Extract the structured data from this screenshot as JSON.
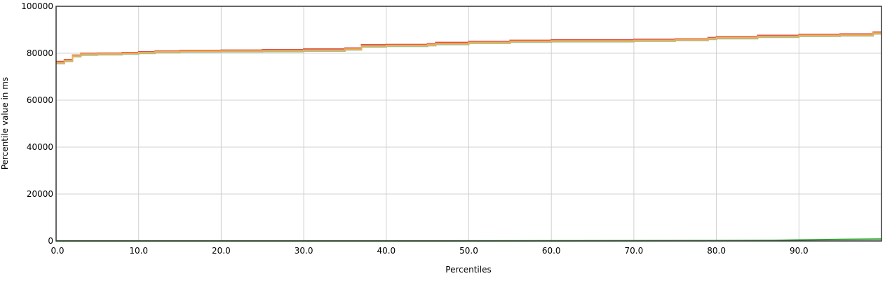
{
  "chart_data": {
    "type": "line",
    "title": "",
    "xlabel": "Percentiles",
    "ylabel": "Percentile value in ms",
    "xlim": [
      0,
      100
    ],
    "ylim": [
      0,
      100000
    ],
    "grid": true,
    "legend": "none",
    "x_ticks": [
      "0.0",
      "10.0",
      "20.0",
      "30.0",
      "40.0",
      "50.0",
      "60.0",
      "70.0",
      "80.0",
      "90.0"
    ],
    "y_ticks": [
      "0",
      "20000",
      "40000",
      "60000",
      "80000",
      "100000"
    ],
    "series": [
      {
        "color": "#d9534f",
        "step": true,
        "x": [
          0,
          1,
          2,
          3,
          5,
          8,
          10,
          12,
          15,
          20,
          25,
          30,
          35,
          37,
          40,
          45,
          46,
          50,
          55,
          60,
          65,
          70,
          75,
          79,
          80,
          85,
          90,
          95,
          99,
          100
        ],
        "y": [
          76500,
          77300,
          79200,
          79900,
          80000,
          80300,
          80600,
          80900,
          81200,
          81300,
          81500,
          81800,
          82200,
          83600,
          83700,
          84000,
          84600,
          85000,
          85500,
          85700,
          85700,
          85900,
          86100,
          86700,
          87000,
          87600,
          88000,
          88200,
          89000,
          89000
        ]
      },
      {
        "color": "#f0ad4e",
        "step": true,
        "x": [
          0,
          1,
          2,
          3,
          5,
          8,
          10,
          12,
          15,
          20,
          25,
          30,
          35,
          37,
          40,
          45,
          46,
          50,
          55,
          60,
          65,
          70,
          75,
          79,
          80,
          85,
          90,
          95,
          99,
          100
        ],
        "y": [
          76000,
          76900,
          78900,
          79600,
          79700,
          80000,
          80300,
          80600,
          80900,
          81000,
          81100,
          81300,
          81800,
          83100,
          83300,
          83600,
          84100,
          84600,
          85100,
          85300,
          85300,
          85500,
          85800,
          86300,
          86600,
          87200,
          87600,
          87800,
          88600,
          88600
        ]
      },
      {
        "color": "#a7c090",
        "step": true,
        "x": [
          0,
          1,
          2,
          3,
          5,
          8,
          10,
          12,
          15,
          20,
          25,
          30,
          35,
          37,
          40,
          45,
          46,
          50,
          55,
          60,
          65,
          70,
          75,
          79,
          80,
          85,
          90,
          95,
          99,
          100
        ],
        "y": [
          75600,
          76500,
          78500,
          79200,
          79300,
          79600,
          79900,
          80200,
          80500,
          80600,
          80700,
          80900,
          81400,
          82700,
          82900,
          83200,
          83700,
          84200,
          84700,
          84900,
          84900,
          85100,
          85400,
          85900,
          86200,
          86800,
          87200,
          87400,
          88200,
          88200
        ]
      },
      {
        "color": "#2ca02c",
        "step": false,
        "x": [
          0,
          20,
          40,
          60,
          80,
          87,
          90,
          95,
          100
        ],
        "y": [
          20,
          30,
          40,
          60,
          150,
          250,
          450,
          650,
          800
        ]
      }
    ]
  }
}
